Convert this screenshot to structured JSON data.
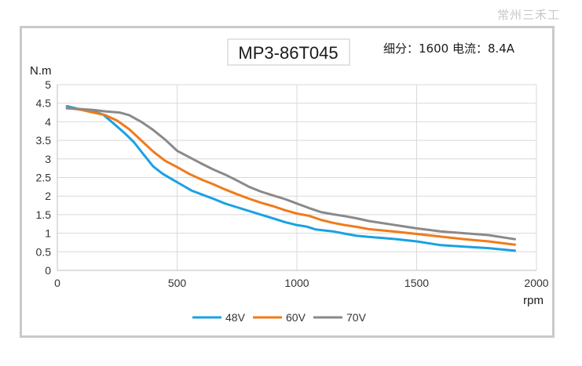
{
  "watermark": "常州三禾工",
  "chart_data": {
    "type": "line",
    "title": "MP3-86T045",
    "subtitle": "细分：1600 电流：8.4A",
    "xlabel": "rpm",
    "ylabel": "N.m",
    "xlim": [
      0,
      2000
    ],
    "ylim": [
      0,
      5
    ],
    "xticks": [
      "0",
      "500",
      "1000",
      "1500",
      "2000"
    ],
    "yticks": [
      "0",
      "0.5",
      "1",
      "1.5",
      "2",
      "2.5",
      "3",
      "3.5",
      "4",
      "4.5",
      "5"
    ],
    "grid": true,
    "legend_position": "bottom",
    "series": [
      {
        "name": "48V",
        "color": "#1ba1e2",
        "points": [
          [
            40,
            4.42
          ],
          [
            100,
            4.33
          ],
          [
            150,
            4.28
          ],
          [
            190,
            4.2
          ],
          [
            230,
            3.98
          ],
          [
            280,
            3.7
          ],
          [
            320,
            3.45
          ],
          [
            360,
            3.12
          ],
          [
            400,
            2.8
          ],
          [
            440,
            2.6
          ],
          [
            480,
            2.45
          ],
          [
            520,
            2.3
          ],
          [
            560,
            2.15
          ],
          [
            600,
            2.05
          ],
          [
            650,
            1.93
          ],
          [
            700,
            1.8
          ],
          [
            740,
            1.72
          ],
          [
            800,
            1.6
          ],
          [
            850,
            1.5
          ],
          [
            900,
            1.4
          ],
          [
            950,
            1.3
          ],
          [
            1000,
            1.22
          ],
          [
            1040,
            1.18
          ],
          [
            1080,
            1.1
          ],
          [
            1150,
            1.05
          ],
          [
            1200,
            0.99
          ],
          [
            1250,
            0.93
          ],
          [
            1300,
            0.9
          ],
          [
            1400,
            0.85
          ],
          [
            1500,
            0.78
          ],
          [
            1600,
            0.68
          ],
          [
            1700,
            0.64
          ],
          [
            1800,
            0.6
          ],
          [
            1910,
            0.53
          ]
        ]
      },
      {
        "name": "60V",
        "color": "#f07b1a",
        "points": [
          [
            40,
            4.38
          ],
          [
            100,
            4.32
          ],
          [
            150,
            4.25
          ],
          [
            200,
            4.18
          ],
          [
            250,
            4.03
          ],
          [
            300,
            3.8
          ],
          [
            350,
            3.5
          ],
          [
            400,
            3.2
          ],
          [
            450,
            2.95
          ],
          [
            500,
            2.78
          ],
          [
            550,
            2.6
          ],
          [
            600,
            2.45
          ],
          [
            650,
            2.32
          ],
          [
            700,
            2.18
          ],
          [
            750,
            2.05
          ],
          [
            800,
            1.93
          ],
          [
            850,
            1.82
          ],
          [
            900,
            1.73
          ],
          [
            950,
            1.62
          ],
          [
            1000,
            1.53
          ],
          [
            1050,
            1.47
          ],
          [
            1100,
            1.36
          ],
          [
            1150,
            1.28
          ],
          [
            1200,
            1.22
          ],
          [
            1250,
            1.17
          ],
          [
            1300,
            1.11
          ],
          [
            1400,
            1.05
          ],
          [
            1500,
            0.98
          ],
          [
            1600,
            0.91
          ],
          [
            1700,
            0.84
          ],
          [
            1800,
            0.78
          ],
          [
            1910,
            0.69
          ]
        ]
      },
      {
        "name": "70V",
        "color": "#8a8a8a",
        "points": [
          [
            40,
            4.36
          ],
          [
            100,
            4.34
          ],
          [
            150,
            4.32
          ],
          [
            200,
            4.28
          ],
          [
            260,
            4.25
          ],
          [
            300,
            4.18
          ],
          [
            350,
            4.0
          ],
          [
            400,
            3.78
          ],
          [
            450,
            3.52
          ],
          [
            500,
            3.22
          ],
          [
            550,
            3.05
          ],
          [
            600,
            2.88
          ],
          [
            650,
            2.72
          ],
          [
            700,
            2.58
          ],
          [
            750,
            2.42
          ],
          [
            800,
            2.25
          ],
          [
            850,
            2.12
          ],
          [
            900,
            2.02
          ],
          [
            950,
            1.92
          ],
          [
            1000,
            1.8
          ],
          [
            1050,
            1.68
          ],
          [
            1100,
            1.57
          ],
          [
            1150,
            1.51
          ],
          [
            1200,
            1.46
          ],
          [
            1250,
            1.4
          ],
          [
            1300,
            1.33
          ],
          [
            1400,
            1.23
          ],
          [
            1500,
            1.13
          ],
          [
            1600,
            1.05
          ],
          [
            1700,
            1.0
          ],
          [
            1800,
            0.95
          ],
          [
            1910,
            0.84
          ]
        ]
      }
    ]
  }
}
